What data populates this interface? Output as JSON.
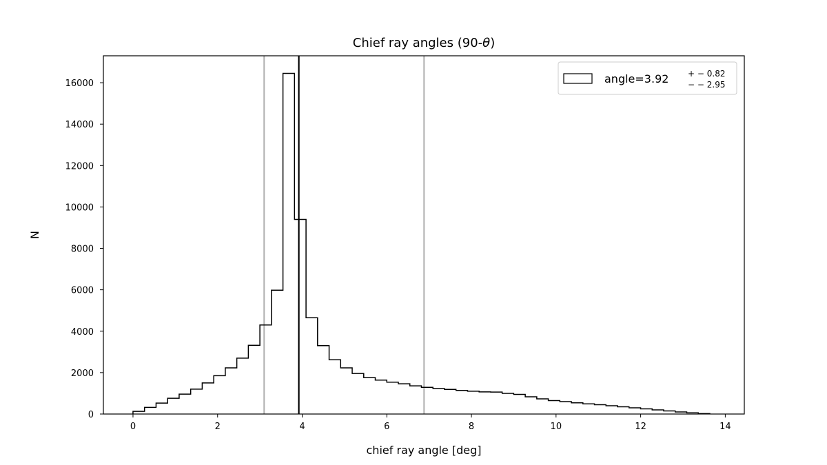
{
  "chart_data": {
    "type": "bar",
    "title": "Chief ray angles (90-",
    "title_symbol": "θ",
    "title_suffix": ")",
    "xlabel": "chief ray angle [deg]",
    "ylabel": "N",
    "xlim": [
      -0.7,
      14.45
    ],
    "ylim": [
      0,
      17300
    ],
    "xticks": [
      0,
      2,
      4,
      6,
      8,
      10,
      12,
      14
    ],
    "yticks": [
      0,
      2000,
      4000,
      6000,
      8000,
      10000,
      12000,
      14000,
      16000
    ],
    "bin_start": 0.0,
    "bin_width": 0.2727,
    "values": [
      130,
      320,
      530,
      760,
      960,
      1200,
      1500,
      1850,
      2230,
      2700,
      3320,
      4300,
      5980,
      16450,
      9400,
      4650,
      3300,
      2620,
      2230,
      1960,
      1760,
      1640,
      1540,
      1460,
      1360,
      1290,
      1230,
      1190,
      1140,
      1100,
      1070,
      1060,
      1000,
      950,
      830,
      730,
      650,
      600,
      540,
      490,
      450,
      400,
      350,
      300,
      250,
      200,
      150,
      100,
      60,
      20
    ],
    "vlines": [
      {
        "x": 3.1,
        "color": "#b0b0b0"
      },
      {
        "x": 3.92,
        "color": "#000000"
      },
      {
        "x": 6.88,
        "color": "#b0b0b0"
      }
    ],
    "grid": false,
    "legend": {
      "placement": "top-right",
      "label": "angle=3.92",
      "sup": "+ − 0.82",
      "sub": "− − 2.95"
    }
  }
}
